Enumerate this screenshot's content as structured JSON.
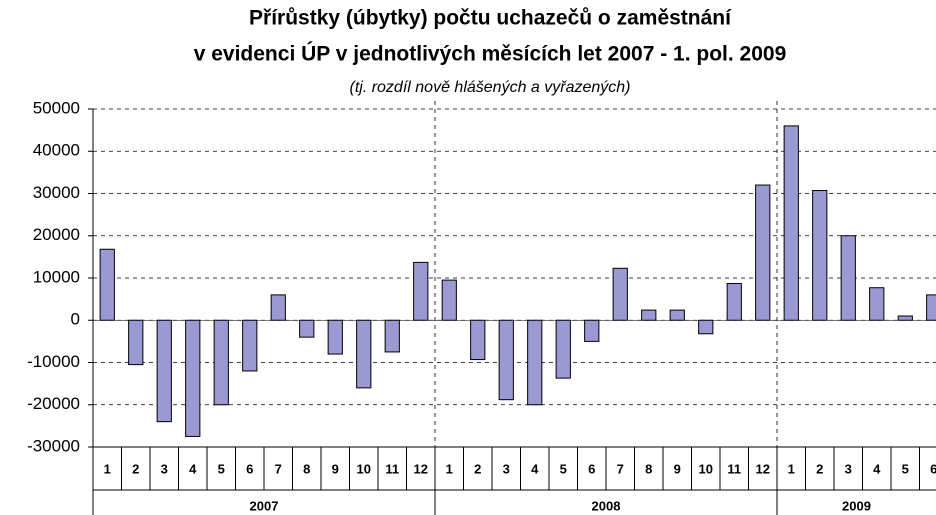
{
  "chart_data": {
    "type": "bar",
    "title": [
      "Přírůstky (úbytky) počtu uchazečů o zaměstnání",
      "v evidenci ÚP v jednotlivých měsících let 2007 - 1. pol. 2009"
    ],
    "subtitle": "(tj. rozdíl nově hlášených a vyřazených)",
    "categories": [
      "1",
      "2",
      "3",
      "4",
      "5",
      "6",
      "7",
      "8",
      "9",
      "10",
      "11",
      "12",
      "1",
      "2",
      "3",
      "4",
      "5",
      "6",
      "7",
      "8",
      "9",
      "10",
      "11",
      "12",
      "1",
      "2",
      "3",
      "4",
      "5",
      "6"
    ],
    "category_groups": [
      "2007",
      "2008",
      "2009"
    ],
    "values": [
      16800,
      -10500,
      -24000,
      -27500,
      -20000,
      -12000,
      6000,
      -4000,
      -8000,
      -16000,
      -7500,
      13700,
      9500,
      -9300,
      -18800,
      -20000,
      -13700,
      -5000,
      12300,
      2400,
      2400,
      -3200,
      8700,
      32000,
      46000,
      30700,
      20000,
      7700,
      1000,
      6000
    ],
    "color": "#9b99d3",
    "ylim": [
      -30000,
      50000
    ],
    "yticks": [
      -30000,
      -20000,
      -10000,
      0,
      10000,
      20000,
      30000,
      40000,
      50000
    ],
    "grid": true
  }
}
